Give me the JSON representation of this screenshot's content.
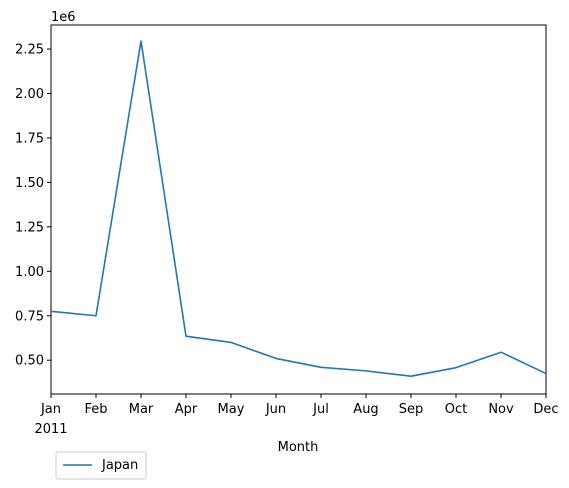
{
  "chart_data": {
    "type": "line",
    "x": [
      "Jan",
      "Feb",
      "Mar",
      "Apr",
      "May",
      "Jun",
      "Jul",
      "Aug",
      "Sep",
      "Oct",
      "Nov",
      "Dec"
    ],
    "year_label": "2011",
    "xlabel": "Month",
    "ylabel": "",
    "y_offset_label": "1e6",
    "y_ticks": [
      0.5,
      0.75,
      1.0,
      1.25,
      1.5,
      1.75,
      2.0,
      2.25
    ],
    "y_tick_labels": [
      "0.50",
      "0.75",
      "1.00",
      "1.25",
      "1.50",
      "1.75",
      "2.00",
      "2.25"
    ],
    "ylim": [
      0.31,
      2.385
    ],
    "y_multiplier": 1000000,
    "series": [
      {
        "name": "Japan",
        "color": "#1f77b4",
        "values": [
          0.775,
          0.75,
          2.295,
          0.635,
          0.6,
          0.51,
          0.46,
          0.44,
          0.41,
          0.458,
          0.545,
          0.425
        ]
      }
    ],
    "legend": {
      "location": "below-left"
    },
    "grid": false
  }
}
